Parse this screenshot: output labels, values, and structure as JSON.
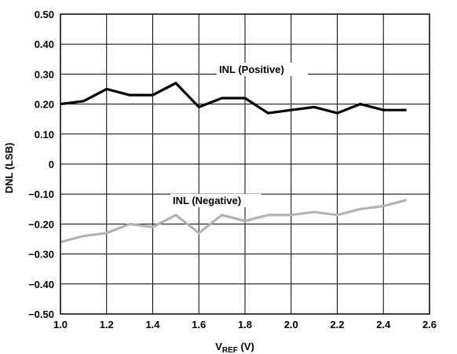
{
  "chart_data": {
    "type": "line",
    "xlabel": {
      "main": "V",
      "sub": "REF",
      "rest": " (V)"
    },
    "ylabel": "DNL (LSB)",
    "xlim": [
      1.0,
      2.6
    ],
    "ylim": [
      -0.5,
      0.5
    ],
    "xticks": [
      "1.0",
      "1.2",
      "1.4",
      "1.6",
      "1.8",
      "2.0",
      "2.2",
      "2.4",
      "2.6"
    ],
    "yticks": [
      "0.50",
      "0.40",
      "0.30",
      "0.20",
      "0.10",
      "0",
      "−0.10",
      "−0.20",
      "−0.30",
      "−0.40",
      "−0.50"
    ],
    "x_grid_step": 0.2,
    "y_grid_step": 0.1,
    "grid": true,
    "series": [
      {
        "name": "INL (Positive)",
        "color": "#000000",
        "x": [
          1.0,
          1.1,
          1.2,
          1.3,
          1.4,
          1.5,
          1.6,
          1.7,
          1.8,
          1.9,
          2.0,
          2.1,
          2.2,
          2.3,
          2.4,
          2.5
        ],
        "values": [
          0.2,
          0.21,
          0.25,
          0.23,
          0.23,
          0.27,
          0.19,
          0.22,
          0.22,
          0.17,
          0.18,
          0.19,
          0.17,
          0.2,
          0.18,
          0.18
        ]
      },
      {
        "name": "INL (Negative)",
        "color": "#b3b3b3",
        "x": [
          1.0,
          1.1,
          1.2,
          1.3,
          1.4,
          1.5,
          1.6,
          1.7,
          1.8,
          1.9,
          2.0,
          2.1,
          2.2,
          2.3,
          2.4,
          2.5
        ],
        "values": [
          -0.26,
          -0.24,
          -0.23,
          -0.2,
          -0.21,
          -0.17,
          -0.23,
          -0.17,
          -0.19,
          -0.17,
          -0.17,
          -0.16,
          -0.17,
          -0.15,
          -0.14,
          -0.12
        ]
      }
    ]
  }
}
